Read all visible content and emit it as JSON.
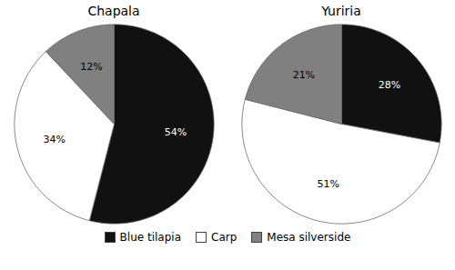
{
  "chart_data": [
    {
      "type": "pie",
      "title": "Chapala",
      "categories": [
        "Blue tilapia",
        "Carp",
        "Mesa silverside"
      ],
      "values": [
        54,
        34,
        12
      ],
      "value_labels": [
        "54%",
        "34%",
        "12%"
      ],
      "colors": [
        "#111111",
        "#ffffff",
        "#808080"
      ],
      "data_labels": true,
      "legend": "bottom"
    },
    {
      "type": "pie",
      "title": "Yuriria",
      "categories": [
        "Blue tilapia",
        "Carp",
        "Mesa silverside"
      ],
      "values": [
        28,
        51,
        21
      ],
      "value_labels": [
        "28%",
        "51%",
        "21%"
      ],
      "colors": [
        "#111111",
        "#ffffff",
        "#808080"
      ],
      "data_labels": true,
      "legend": "bottom"
    }
  ]
}
